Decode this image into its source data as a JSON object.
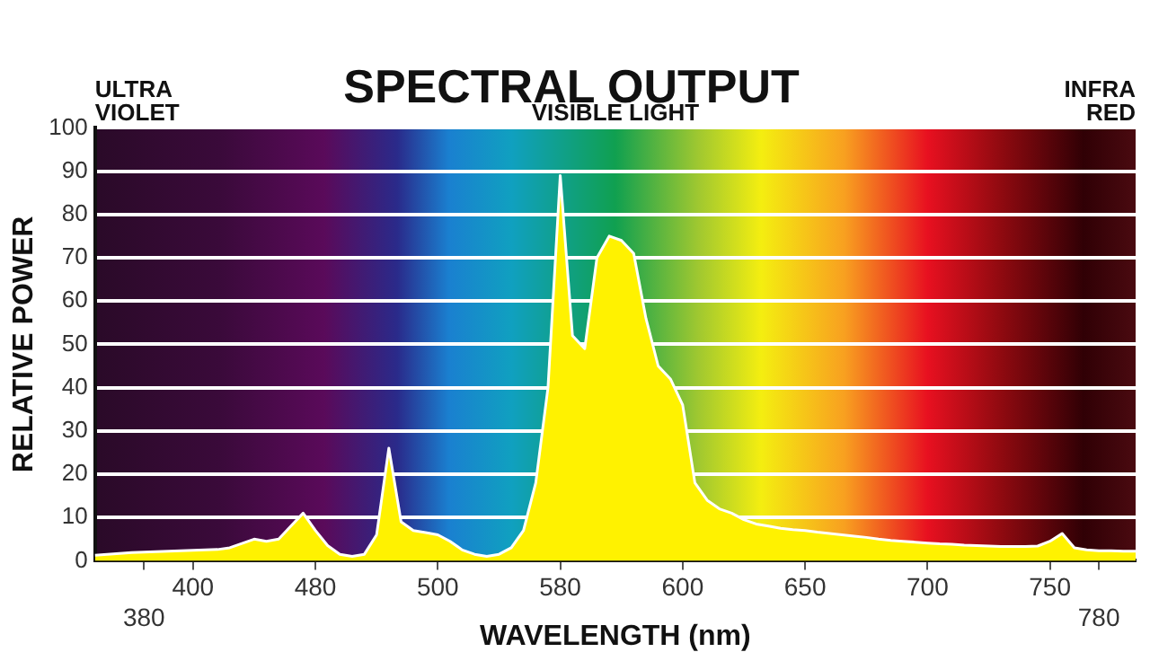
{
  "chart_data": {
    "type": "area",
    "title": "SPECTRAL OUTPUT",
    "xlabel": "WAVELENGTH (nm)",
    "ylabel": "RELATIVE POWER",
    "annotations": [
      "ULTRA VIOLET",
      "VISIBLE LIGHT",
      "INFRA RED"
    ],
    "categories": [
      null,
      null,
      null,
      null,
      "380",
      null,
      null,
      null,
      "400",
      null,
      null,
      null,
      null,
      null,
      null,
      null,
      null,
      null,
      "480",
      null,
      null,
      null,
      null,
      null,
      null,
      null,
      null,
      null,
      "500",
      null,
      null,
      null,
      null,
      null,
      null,
      null,
      null,
      null,
      "580",
      null,
      null,
      null,
      null,
      null,
      null,
      null,
      null,
      null,
      "600",
      null,
      null,
      null,
      null,
      null,
      null,
      null,
      null,
      null,
      "650",
      null,
      null,
      null,
      null,
      null,
      null,
      null,
      null,
      null,
      "700",
      null,
      null,
      null,
      null,
      null,
      null,
      null,
      null,
      null,
      "750",
      null,
      null,
      null,
      "780",
      null,
      null,
      null
    ],
    "series": [
      {
        "color": "#fff200",
        "values": [
          1.3,
          1.5,
          1.7,
          1.9,
          2,
          2.1,
          2.2,
          2.3,
          2.4,
          2.5,
          2.6,
          3,
          4,
          5,
          4.5,
          5,
          8,
          11,
          7,
          3.5,
          1.5,
          1,
          1.5,
          6,
          26,
          9,
          7,
          6.5,
          6,
          4.5,
          2.5,
          1.5,
          1,
          1.5,
          3,
          7,
          18,
          40,
          89,
          52,
          49,
          70,
          75,
          74,
          71,
          56,
          45,
          42,
          36,
          18,
          14,
          12,
          11,
          9.5,
          8.5,
          8,
          7.5,
          7.2,
          7,
          6.6,
          6.3,
          6,
          5.7,
          5.4,
          5,
          4.7,
          4.5,
          4.3,
          4.1,
          3.9,
          3.8,
          3.6,
          3.5,
          3.4,
          3.3,
          3.3,
          3.3,
          3.4,
          4.5,
          6.3,
          3,
          2.5,
          2.3,
          2.3,
          2.2,
          2.2
        ]
      }
    ],
    "ylim": [
      0,
      100
    ],
    "yticks": [
      0,
      10,
      20,
      30,
      40,
      50,
      60,
      70,
      80,
      90,
      100
    ],
    "grid": "y"
  }
}
